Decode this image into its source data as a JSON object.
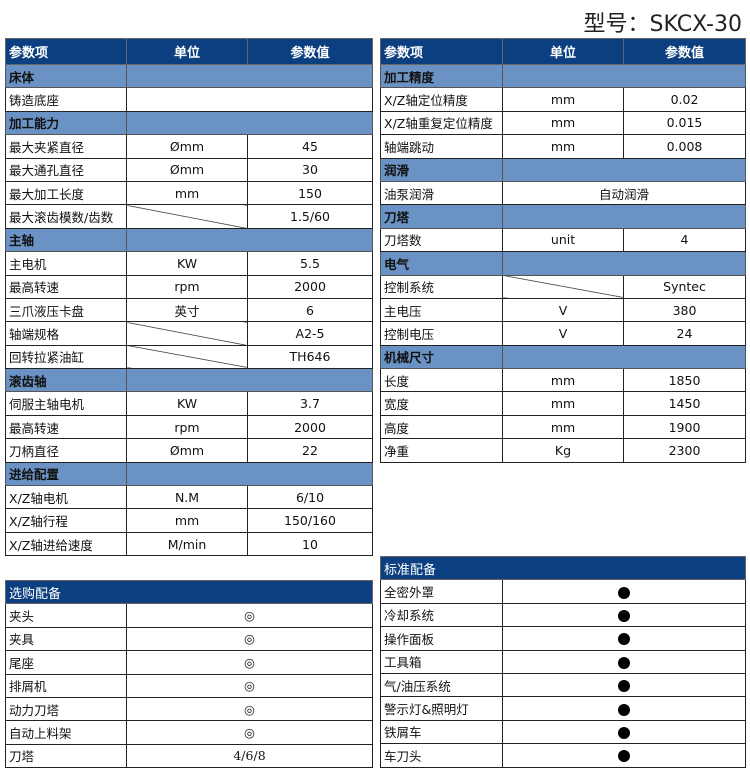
{
  "title": "型号：SKCX-30",
  "headers": {
    "item": "参数项",
    "unit": "单位",
    "value": "参数值"
  },
  "left_table": [
    {
      "section": "床体"
    },
    {
      "label": "铸造底座",
      "merged": true,
      "value": ""
    },
    {
      "section": "加工能力"
    },
    {
      "label": "最大夹紧直径",
      "unit": "Ømm",
      "value": "45"
    },
    {
      "label": "最大通孔直径",
      "unit": "Ømm",
      "value": "30"
    },
    {
      "label": "最大加工长度",
      "unit": "mm",
      "value": "150"
    },
    {
      "label": "最大滚齿模数/齿数",
      "diag": true,
      "value": "1.5/60"
    },
    {
      "section": "主轴"
    },
    {
      "label": "主电机",
      "unit": "KW",
      "value": "5.5"
    },
    {
      "label": "最高转速",
      "unit": "rpm",
      "value": "2000"
    },
    {
      "label": "三爪液压卡盘",
      "unit": "英寸",
      "value": "6"
    },
    {
      "label": "轴端规格",
      "diag": true,
      "value": "A2-5"
    },
    {
      "label": "回转拉紧油缸",
      "diag": true,
      "value": "TH646"
    },
    {
      "section": "滚齿轴"
    },
    {
      "label": "伺服主轴电机",
      "unit": "KW",
      "value": "3.7"
    },
    {
      "label": "最高转速",
      "unit": "rpm",
      "value": "2000"
    },
    {
      "label": "刀柄直径",
      "unit": "Ømm",
      "value": "22"
    },
    {
      "section": "进给配置"
    },
    {
      "label": "X/Z轴电机",
      "unit": "N.M",
      "value": "6/10"
    },
    {
      "label": "X/Z轴行程",
      "unit": "mm",
      "value": "150/160"
    },
    {
      "label": "X/Z轴进给速度",
      "unit": "M/min",
      "value": "10"
    }
  ],
  "right_table": [
    {
      "section": "加工精度"
    },
    {
      "label": "X/Z轴定位精度",
      "unit": "mm",
      "value": "0.02"
    },
    {
      "label": "X/Z轴重复定位精度",
      "unit": "mm",
      "value": "0.015"
    },
    {
      "label": "轴端跳动",
      "unit": "mm",
      "value": "0.008"
    },
    {
      "section": "润滑"
    },
    {
      "label": "油泵润滑",
      "merged": true,
      "value": "自动润滑"
    },
    {
      "section": "刀塔"
    },
    {
      "label": "刀塔数",
      "unit": "unit",
      "value": "4"
    },
    {
      "section": "电气"
    },
    {
      "label": "控制系统",
      "diag": true,
      "value": "Syntec"
    },
    {
      "label": "主电压",
      "unit": "V",
      "value": "380"
    },
    {
      "label": "控制电压",
      "unit": "V",
      "value": "24"
    },
    {
      "section": "机械尺寸"
    },
    {
      "label": "长度",
      "unit": "mm",
      "value": "1850"
    },
    {
      "label": "宽度",
      "unit": "mm",
      "value": "1450"
    },
    {
      "label": "高度",
      "unit": "mm",
      "value": "1900"
    },
    {
      "label": "净重",
      "unit": "Kg",
      "value": "2300"
    }
  ],
  "optional": {
    "title": "选购配备",
    "items": [
      {
        "label": "夹头",
        "value": "◎"
      },
      {
        "label": "夹具",
        "value": "◎"
      },
      {
        "label": "尾座",
        "value": "◎"
      },
      {
        "label": "排屑机",
        "value": "◎"
      },
      {
        "label": "动力刀塔",
        "value": "◎"
      },
      {
        "label": "自动上料架",
        "value": "◎"
      },
      {
        "label": "刀塔",
        "value": "4/6/8"
      }
    ]
  },
  "standard": {
    "title": "标准配备",
    "icon": "filled-circle-icon",
    "items": [
      {
        "label": "全密外罩"
      },
      {
        "label": "冷却系统"
      },
      {
        "label": "操作面板"
      },
      {
        "label": "工具箱"
      },
      {
        "label": "气/油压系统"
      },
      {
        "label": "警示灯&照明灯"
      },
      {
        "label": "铁屑车"
      },
      {
        "label": "车刀头"
      }
    ]
  }
}
